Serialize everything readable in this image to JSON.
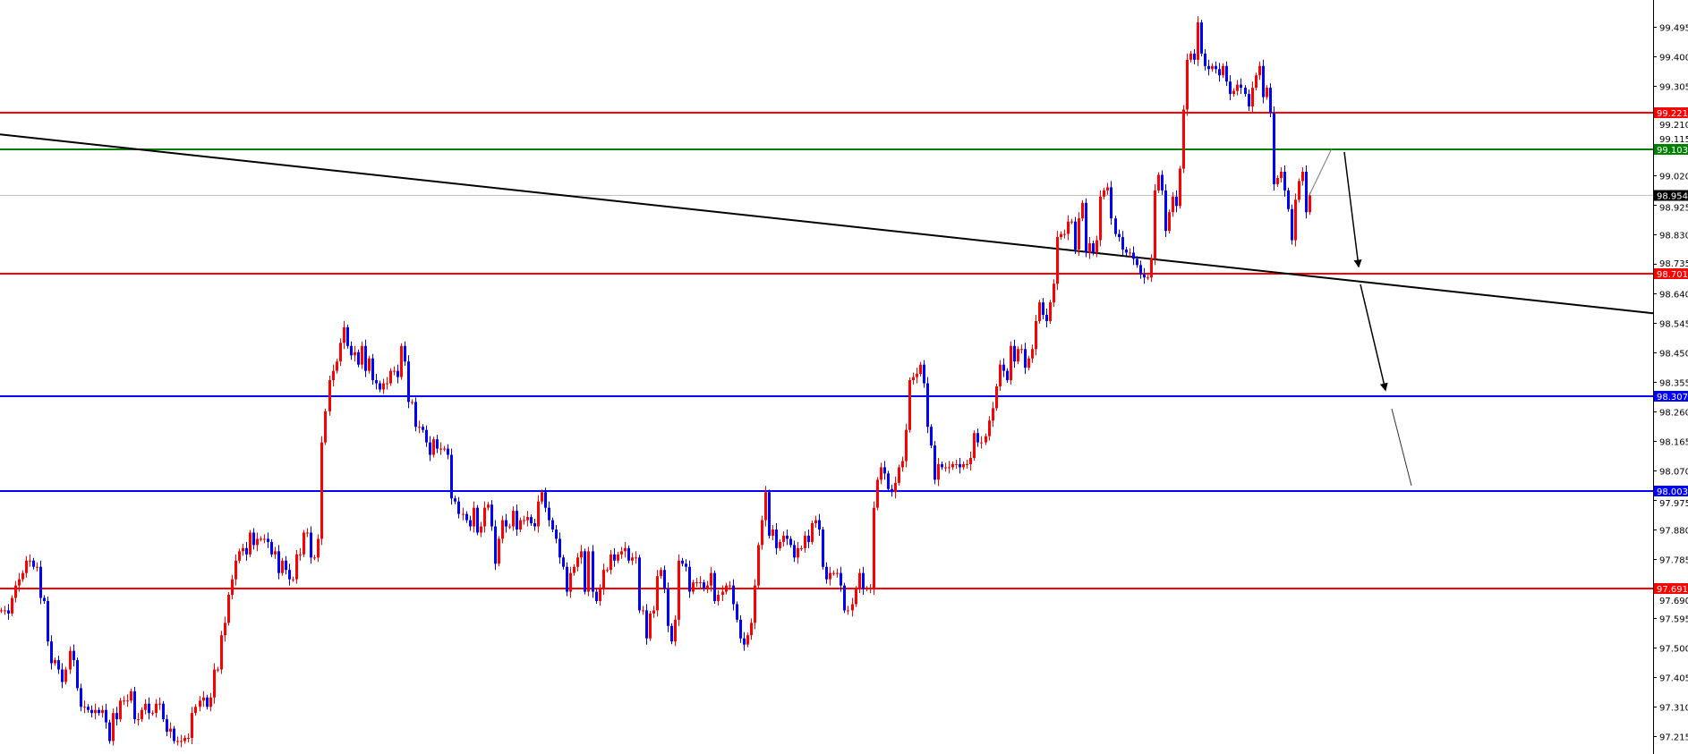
{
  "chart_data": {
    "type": "candlestick",
    "title": "",
    "xlabel": "",
    "ylabel": "",
    "ylim": [
      97.158,
      99.582
    ],
    "grid": false,
    "colors": {
      "bull": "#ff0000",
      "bear": "#0000ff",
      "axis": "#000000",
      "background": "#ffffff"
    },
    "y_ticks": [
      "99.495",
      "99.400",
      "99.305",
      "99.210",
      "99.115",
      "99.020",
      "98.925",
      "98.830",
      "98.735",
      "98.640",
      "98.545",
      "98.450",
      "98.355",
      "98.260",
      "98.165",
      "98.070",
      "97.975",
      "97.880",
      "97.785",
      "97.690",
      "97.595",
      "97.500",
      "97.405",
      "97.310",
      "97.215"
    ],
    "current_price": {
      "label": "98.954",
      "value": 98.954,
      "color": "#c0c0c0",
      "label_bg": "#000000"
    },
    "levels": [
      {
        "label": "99.221",
        "value": 99.221,
        "color": "#ff0000"
      },
      {
        "label": "99.103",
        "value": 99.103,
        "color": "#008000"
      },
      {
        "label": "98.701",
        "value": 98.701,
        "color": "#ff0000"
      },
      {
        "label": "98.307",
        "value": 98.307,
        "color": "#0000ff"
      },
      {
        "label": "98.003",
        "value": 98.003,
        "color": "#0000ff"
      },
      {
        "label": "97.691",
        "value": 97.691,
        "color": "#ff0000"
      }
    ],
    "trendline": {
      "start": 99.15,
      "end": 98.575,
      "color": "#000000"
    },
    "closes": [
      97.62,
      97.62,
      97.61,
      97.66,
      97.7,
      97.72,
      97.74,
      97.78,
      97.78,
      97.76,
      97.76,
      97.66,
      97.65,
      97.52,
      97.45,
      97.46,
      97.43,
      97.39,
      97.43,
      97.49,
      97.46,
      97.37,
      97.31,
      97.31,
      97.3,
      97.29,
      97.3,
      97.29,
      97.3,
      97.26,
      97.2,
      97.29,
      97.27,
      97.33,
      97.33,
      97.33,
      97.36,
      97.27,
      97.27,
      97.3,
      97.32,
      97.29,
      97.29,
      97.32,
      97.32,
      97.27,
      97.23,
      97.24,
      97.2,
      97.2,
      97.2,
      97.21,
      97.21,
      97.29,
      97.31,
      97.33,
      97.34,
      97.31,
      97.34,
      97.43,
      97.43,
      97.54,
      97.58,
      97.67,
      97.72,
      97.78,
      97.81,
      97.82,
      97.8,
      97.87,
      97.83,
      97.85,
      97.85,
      97.85,
      97.84,
      97.8,
      97.81,
      97.74,
      97.78,
      97.75,
      97.72,
      97.72,
      97.8,
      97.8,
      97.87,
      97.87,
      97.79,
      97.79,
      97.85,
      98.16,
      98.26,
      98.36,
      98.39,
      98.42,
      98.48,
      98.53,
      98.47,
      98.44,
      98.45,
      98.41,
      98.47,
      98.39,
      98.43,
      98.36,
      98.35,
      98.33,
      98.35,
      98.35,
      98.39,
      98.39,
      98.37,
      98.47,
      98.42,
      98.29,
      98.29,
      98.21,
      98.21,
      98.2,
      98.16,
      98.12,
      98.17,
      98.14,
      98.14,
      98.14,
      98.12,
      97.98,
      97.97,
      97.93,
      97.93,
      97.91,
      97.89,
      97.95,
      97.87,
      97.89,
      97.95,
      97.96,
      97.89,
      97.77,
      97.85,
      97.91,
      97.89,
      97.89,
      97.94,
      97.88,
      97.91,
      97.91,
      97.92,
      97.9,
      97.89,
      97.97,
      98.0,
      97.95,
      97.91,
      97.88,
      97.85,
      97.79,
      97.76,
      97.68,
      97.74,
      97.76,
      97.79,
      97.81,
      97.68,
      97.81,
      97.68,
      97.65,
      97.69,
      97.75,
      97.75,
      97.8,
      97.78,
      97.8,
      97.81,
      97.82,
      97.78,
      97.79,
      97.79,
      97.62,
      97.62,
      97.53,
      97.61,
      97.62,
      97.73,
      97.75,
      97.69,
      97.57,
      97.52,
      97.59,
      97.78,
      97.77,
      97.76,
      97.68,
      97.71,
      97.71,
      97.71,
      97.69,
      97.7,
      97.74,
      97.65,
      97.67,
      97.68,
      97.7,
      97.7,
      97.64,
      97.59,
      97.53,
      97.51,
      97.54,
      97.58,
      97.7,
      97.83,
      97.91,
      98.0,
      97.86,
      97.88,
      97.82,
      97.84,
      97.86,
      97.85,
      97.83,
      97.79,
      97.82,
      97.82,
      97.86,
      97.84,
      97.9,
      97.91,
      97.88,
      97.76,
      97.72,
      97.74,
      97.74,
      97.74,
      97.7,
      97.62,
      97.62,
      97.64,
      97.69,
      97.74,
      97.69,
      97.69,
      97.69,
      97.95,
      98.04,
      98.08,
      98.06,
      98.01,
      98.0,
      98.03,
      98.08,
      98.1,
      98.2,
      98.36,
      98.37,
      98.38,
      98.41,
      98.35,
      98.21,
      98.15,
      98.04,
      98.09,
      98.08,
      98.08,
      98.08,
      98.09,
      98.09,
      98.08,
      98.09,
      98.09,
      98.11,
      98.19,
      98.16,
      98.16,
      98.18,
      98.23,
      98.27,
      98.34,
      98.41,
      98.39,
      98.36,
      98.47,
      98.42,
      98.46,
      98.46,
      98.4,
      98.43,
      98.46,
      98.55,
      98.61,
      98.57,
      98.55,
      98.61,
      98.67,
      98.82,
      98.83,
      98.83,
      98.87,
      98.87,
      98.78,
      98.88,
      98.93,
      98.77,
      98.8,
      98.77,
      98.81,
      98.95,
      98.97,
      98.98,
      98.88,
      98.83,
      98.82,
      98.78,
      98.77,
      98.77,
      98.75,
      98.73,
      98.7,
      98.69,
      98.69,
      98.75,
      98.97,
      99.02,
      98.97,
      98.84,
      98.9,
      98.95,
      98.92,
      99.04,
      99.23,
      99.39,
      99.41,
      99.39,
      99.51,
      99.41,
      99.37,
      99.36,
      99.37,
      99.36,
      99.34,
      99.37,
      99.32,
      99.28,
      99.29,
      99.31,
      99.3,
      99.28,
      99.24,
      99.3,
      99.34,
      99.37,
      99.27,
      99.3,
      99.22,
      98.99,
      99.01,
      99.03,
      98.97,
      98.91,
      98.81,
      98.94,
      99.0,
      99.03,
      98.9,
      98.954
    ]
  }
}
